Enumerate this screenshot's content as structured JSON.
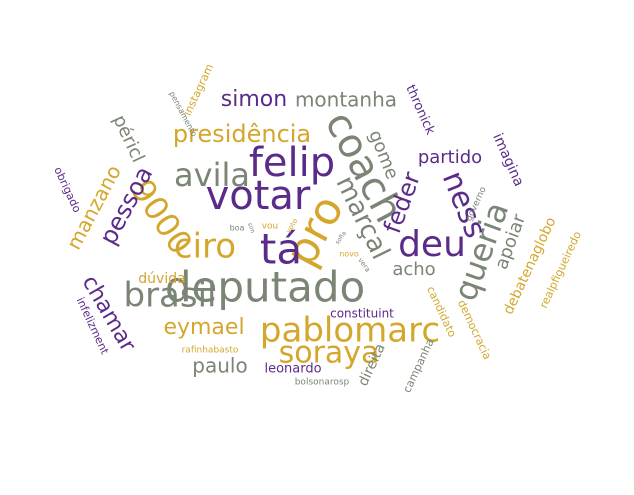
{
  "colors": {
    "purple": "#5b2b8a",
    "gold": "#d4a72c",
    "gray": "#7a8575"
  },
  "words": [
    {
      "text": "deputado",
      "color": "gray"
    },
    {
      "text": "votar",
      "color": "purple"
    },
    {
      "text": "felip",
      "color": "purple"
    },
    {
      "text": "pablomarc",
      "color": "gold"
    },
    {
      "text": "coach",
      "color": "gray"
    },
    {
      "text": "pro",
      "color": "gold"
    },
    {
      "text": "brasil",
      "color": "gray"
    },
    {
      "text": "ciro",
      "color": "gold"
    },
    {
      "text": "tá",
      "color": "purple"
    },
    {
      "text": "avila",
      "color": "gray"
    },
    {
      "text": "marçal",
      "color": "gray"
    },
    {
      "text": "9000",
      "color": "gold"
    },
    {
      "text": "deu",
      "color": "purple"
    },
    {
      "text": "queria",
      "color": "gray"
    },
    {
      "text": "soraya",
      "color": "gold"
    },
    {
      "text": "ness",
      "color": "purple"
    },
    {
      "text": "presidência",
      "color": "gold"
    },
    {
      "text": "pessoa",
      "color": "purple"
    },
    {
      "text": "eymael",
      "color": "gold"
    },
    {
      "text": "feder",
      "color": "purple"
    },
    {
      "text": "chamar",
      "color": "purple"
    },
    {
      "text": "manzano",
      "color": "gold"
    },
    {
      "text": "simon",
      "color": "purple"
    },
    {
      "text": "montanha",
      "color": "gray"
    },
    {
      "text": "paulo",
      "color": "gray"
    },
    {
      "text": "apoiar",
      "color": "gray"
    },
    {
      "text": "acho",
      "color": "gray"
    },
    {
      "text": "partido",
      "color": "purple"
    },
    {
      "text": "gome",
      "color": "gray"
    },
    {
      "text": "péricl",
      "color": "gray"
    },
    {
      "text": "imagina",
      "color": "purple"
    },
    {
      "text": "debatenaglobo",
      "color": "gold"
    },
    {
      "text": "thronick",
      "color": "purple"
    },
    {
      "text": "direita",
      "color": "gray"
    },
    {
      "text": "dúvida",
      "color": "gold"
    },
    {
      "text": "leonardo",
      "color": "purple"
    },
    {
      "text": "constituint",
      "color": "purple"
    },
    {
      "text": "infelizment",
      "color": "purple"
    },
    {
      "text": "obrigado",
      "color": "purple"
    },
    {
      "text": "instagram",
      "color": "gold"
    },
    {
      "text": "candidato",
      "color": "gold"
    },
    {
      "text": "democracia",
      "color": "gold"
    },
    {
      "text": "campanha",
      "color": "gray"
    },
    {
      "text": "realpfigueiredo",
      "color": "gold"
    },
    {
      "text": "governo",
      "color": "gray"
    },
    {
      "text": "rafinhabasto",
      "color": "gold"
    },
    {
      "text": "bolsonarosp",
      "color": "gray"
    },
    {
      "text": "pensamento",
      "color": "gray"
    },
    {
      "text": "vou",
      "color": "gold"
    },
    {
      "text": "voto",
      "color": "gold"
    },
    {
      "text": "novo",
      "color": "gold"
    },
    {
      "text": "boa",
      "color": "gray"
    },
    {
      "text": "sim",
      "color": "gray"
    },
    {
      "text": "vera",
      "color": "gray"
    },
    {
      "text": "sofia",
      "color": "gray"
    }
  ]
}
